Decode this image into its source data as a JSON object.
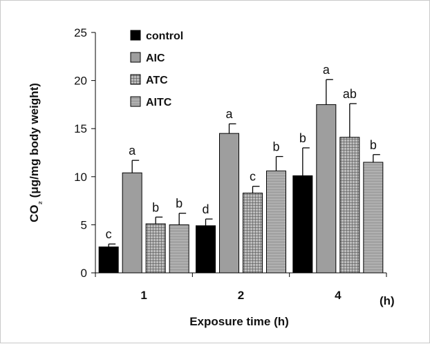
{
  "chart_data": {
    "type": "bar",
    "categories": [
      "1",
      "2",
      "4"
    ],
    "xlabel": "Exposure time (h)",
    "x_unit": "(h)",
    "ylabel": "CO₂ (μg/mg body weight)",
    "ylim": [
      0,
      25
    ],
    "yticks": [
      0,
      5,
      10,
      15,
      20,
      25
    ],
    "grid": false,
    "legend_position": "top-left",
    "series": [
      {
        "name": "control",
        "color": "#000000",
        "pattern": "solid",
        "values": [
          2.7,
          4.9,
          10.1
        ],
        "errors": [
          0.3,
          0.7,
          2.9
        ],
        "letters": [
          "c",
          "d",
          "b"
        ]
      },
      {
        "name": "AIC",
        "color": "#9e9e9e",
        "pattern": "solid",
        "values": [
          10.4,
          14.5,
          17.5
        ],
        "errors": [
          1.3,
          1.0,
          2.6
        ],
        "letters": [
          "a",
          "a",
          "a"
        ]
      },
      {
        "name": "ATC",
        "color": "#7d7d7d",
        "pattern": "grid",
        "values": [
          5.1,
          8.3,
          14.1
        ],
        "errors": [
          0.7,
          0.7,
          3.5
        ],
        "letters": [
          "b",
          "c",
          "ab"
        ]
      },
      {
        "name": "AITC",
        "color": "#a8a8a8",
        "pattern": "dots",
        "values": [
          5.0,
          10.6,
          11.5
        ],
        "errors": [
          1.2,
          1.5,
          0.8
        ],
        "letters": [
          "b",
          "b",
          "b"
        ]
      }
    ]
  }
}
